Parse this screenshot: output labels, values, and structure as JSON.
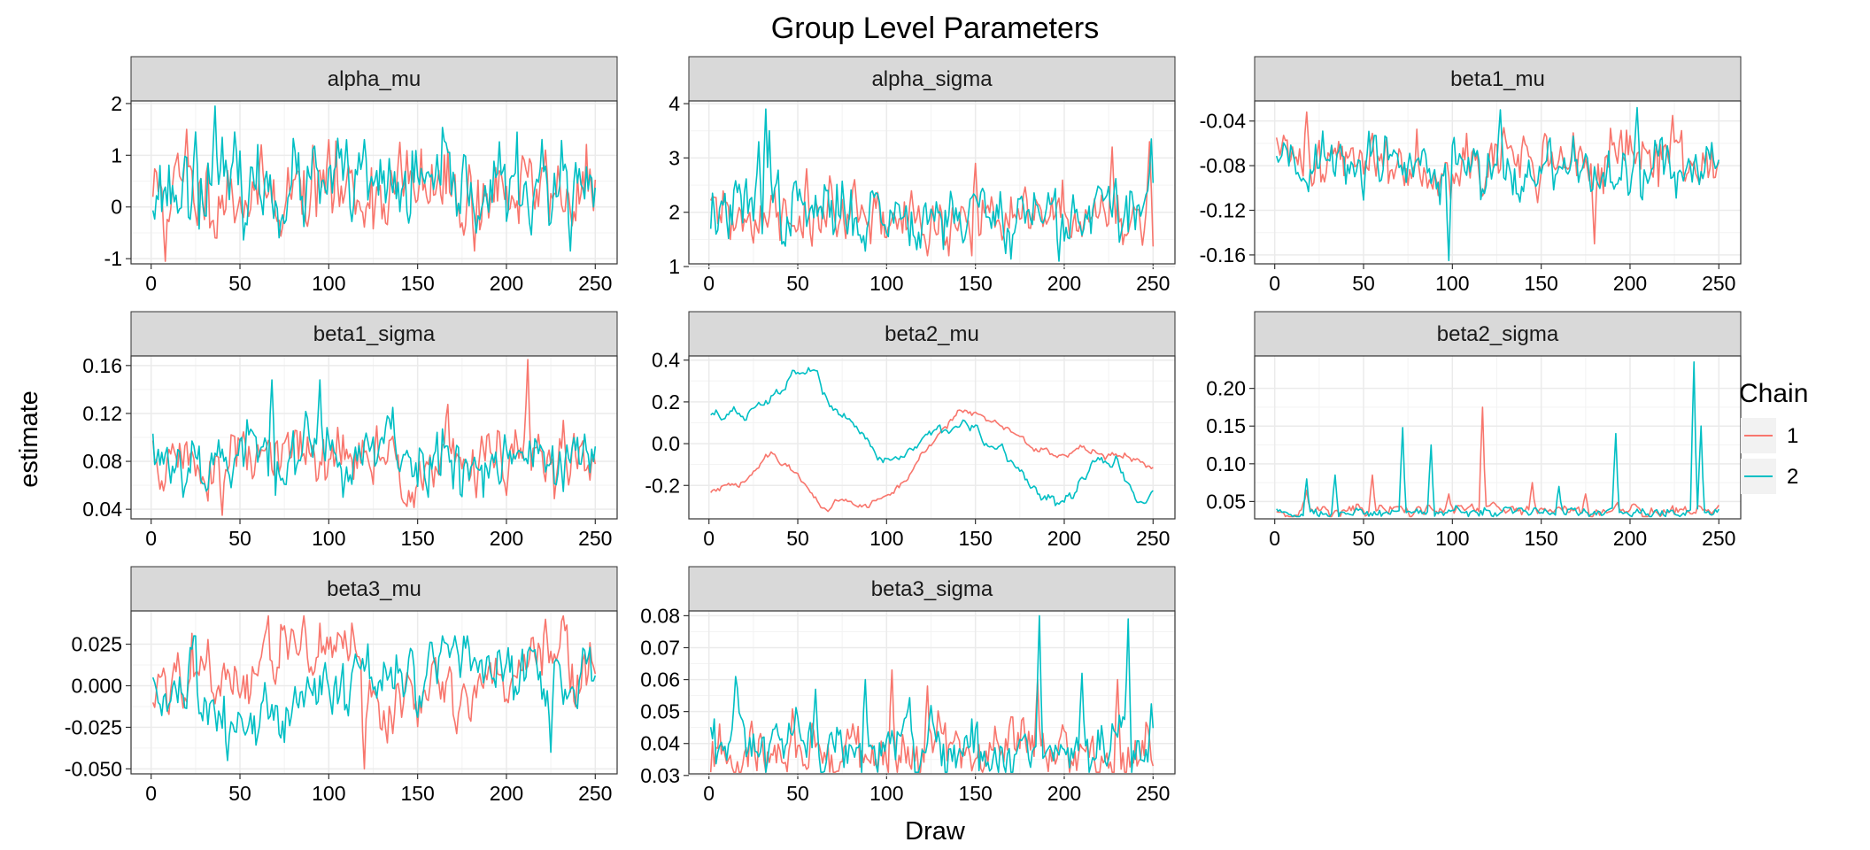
{
  "title": "Group Level Parameters",
  "xlabel": "Draw",
  "ylabel": "estimate",
  "legend": {
    "title": "Chain",
    "items": [
      {
        "label": "1",
        "color": "#F8766D"
      },
      {
        "label": "2",
        "color": "#00BFC4"
      }
    ]
  },
  "colors": {
    "chain1": "#F8766D",
    "chain2": "#00BFC4",
    "strip": "#D9D9D9",
    "grid": "#EBEBEB"
  },
  "chart_data": [
    {
      "type": "line",
      "title": "alpha_mu",
      "xlim": [
        1,
        250
      ],
      "ylim": [
        -1.1,
        2.05
      ],
      "x_ticks": [
        0,
        50,
        100,
        150,
        200,
        250
      ],
      "x_tick_labels": [
        "0",
        "50",
        "100",
        "150",
        "200",
        "250"
      ],
      "y_ticks": [
        -1,
        0,
        1,
        2
      ],
      "y_tick_labels": [
        "-1",
        "0",
        "1",
        "2"
      ],
      "series": [
        {
          "name": "1",
          "mean": 0.3,
          "sd": 0.42,
          "ar": 0.45,
          "min": -1.05,
          "max": 1.5,
          "seed": 11,
          "peaks": [
            [
              8,
              -1.05
            ],
            [
              20,
              1.5
            ],
            [
              62,
              1.2
            ],
            [
              100,
              1.3
            ],
            [
              140,
              1.25
            ],
            [
              182,
              -0.85
            ],
            [
              222,
              1.1
            ]
          ]
        },
        {
          "name": "2",
          "mean": 0.35,
          "sd": 0.42,
          "ar": 0.45,
          "min": -0.85,
          "max": 1.95,
          "seed": 23,
          "peaks": [
            [
              36,
              1.95
            ],
            [
              25,
              1.45
            ],
            [
              110,
              1.3
            ],
            [
              236,
              -0.85
            ]
          ]
        }
      ]
    },
    {
      "type": "line",
      "title": "alpha_sigma",
      "xlim": [
        1,
        250
      ],
      "ylim": [
        1.05,
        4.05
      ],
      "x_ticks": [
        0,
        50,
        100,
        150,
        200,
        250
      ],
      "x_tick_labels": [
        "0",
        "50",
        "100",
        "150",
        "200",
        "250"
      ],
      "y_ticks": [
        1,
        2,
        3,
        4
      ],
      "y_tick_labels": [
        "1",
        "2",
        "3",
        "4"
      ],
      "series": [
        {
          "name": "1",
          "mean": 1.85,
          "sd": 0.3,
          "ar": 0.5,
          "min": 1.2,
          "max": 3.3,
          "seed": 31,
          "peaks": [
            [
              55,
              2.8
            ],
            [
              150,
              2.9
            ],
            [
              227,
              3.2
            ],
            [
              248,
              3.3
            ]
          ]
        },
        {
          "name": "2",
          "mean": 2.0,
          "sd": 0.33,
          "ar": 0.55,
          "min": 1.1,
          "max": 3.9,
          "seed": 37,
          "peaks": [
            [
              32,
              3.9
            ],
            [
              28,
              3.3
            ],
            [
              34,
              3.5
            ],
            [
              197,
              1.1
            ],
            [
              249,
              3.35
            ]
          ]
        }
      ]
    },
    {
      "type": "line",
      "title": "beta1_mu",
      "xlim": [
        1,
        250
      ],
      "ylim": [
        -0.168,
        -0.022
      ],
      "x_ticks": [
        0,
        50,
        100,
        150,
        200,
        250
      ],
      "x_tick_labels": [
        "0",
        "50",
        "100",
        "150",
        "200",
        "250"
      ],
      "y_ticks": [
        -0.16,
        -0.12,
        -0.08,
        -0.04
      ],
      "y_tick_labels": [
        "-0.16",
        "-0.12",
        "-0.08",
        "-0.04"
      ],
      "series": [
        {
          "name": "1",
          "mean": -0.075,
          "sd": 0.014,
          "ar": 0.5,
          "min": -0.15,
          "max": -0.032,
          "seed": 41,
          "peaks": [
            [
              18,
              -0.032
            ],
            [
              180,
              -0.15
            ],
            [
              224,
              -0.035
            ]
          ]
        },
        {
          "name": "2",
          "mean": -0.08,
          "sd": 0.014,
          "ar": 0.5,
          "min": -0.165,
          "max": -0.028,
          "seed": 43,
          "peaks": [
            [
              98,
              -0.165
            ],
            [
              127,
              -0.03
            ],
            [
              204,
              -0.028
            ]
          ]
        }
      ]
    },
    {
      "type": "line",
      "title": "beta1_sigma",
      "xlim": [
        1,
        250
      ],
      "ylim": [
        0.032,
        0.168
      ],
      "x_ticks": [
        0,
        50,
        100,
        150,
        200,
        250
      ],
      "x_tick_labels": [
        "0",
        "50",
        "100",
        "150",
        "200",
        "250"
      ],
      "y_ticks": [
        0.04,
        0.08,
        0.12,
        0.16
      ],
      "y_tick_labels": [
        "0.04",
        "0.08",
        "0.12",
        "0.16"
      ],
      "series": [
        {
          "name": "1",
          "mean": 0.08,
          "sd": 0.016,
          "ar": 0.6,
          "min": 0.035,
          "max": 0.165,
          "seed": 51,
          "peaks": [
            [
              40,
              0.035
            ],
            [
              212,
              0.165
            ]
          ]
        },
        {
          "name": "2",
          "mean": 0.085,
          "sd": 0.016,
          "ar": 0.6,
          "min": 0.05,
          "max": 0.15,
          "seed": 53,
          "peaks": [
            [
              68,
              0.148
            ],
            [
              95,
              0.148
            ],
            [
              136,
              0.125
            ]
          ]
        }
      ]
    },
    {
      "type": "line",
      "title": "beta2_mu",
      "xlim": [
        1,
        250
      ],
      "ylim": [
        -0.36,
        0.42
      ],
      "x_ticks": [
        0,
        50,
        100,
        150,
        200,
        250
      ],
      "x_tick_labels": [
        "0",
        "50",
        "100",
        "150",
        "200",
        "250"
      ],
      "y_ticks": [
        -0.2,
        0.0,
        0.2,
        0.4
      ],
      "y_tick_labels": [
        "-0.2",
        "0.0",
        "0.2",
        "0.4"
      ],
      "series": [
        {
          "name": "1",
          "walk": true,
          "seed": 61,
          "min": -0.33,
          "max": 0.18,
          "anchors": [
            [
              1,
              -0.24
            ],
            [
              20,
              -0.17
            ],
            [
              35,
              -0.06
            ],
            [
              45,
              -0.1
            ],
            [
              55,
              -0.22
            ],
            [
              65,
              -0.3
            ],
            [
              75,
              -0.28
            ],
            [
              90,
              -0.3
            ],
            [
              100,
              -0.25
            ],
            [
              110,
              -0.18
            ],
            [
              125,
              0.0
            ],
            [
              140,
              0.17
            ],
            [
              160,
              0.12
            ],
            [
              180,
              0.0
            ],
            [
              200,
              -0.07
            ],
            [
              215,
              -0.03
            ],
            [
              230,
              -0.06
            ],
            [
              250,
              -0.08
            ]
          ]
        },
        {
          "name": "2",
          "walk": true,
          "seed": 67,
          "min": -0.33,
          "max": 0.37,
          "anchors": [
            [
              1,
              0.15
            ],
            [
              20,
              0.13
            ],
            [
              35,
              0.2
            ],
            [
              50,
              0.35
            ],
            [
              60,
              0.36
            ],
            [
              70,
              0.15
            ],
            [
              85,
              0.0
            ],
            [
              100,
              -0.07
            ],
            [
              115,
              -0.03
            ],
            [
              130,
              0.08
            ],
            [
              140,
              0.1
            ],
            [
              155,
              0.0
            ],
            [
              170,
              -0.1
            ],
            [
              185,
              -0.22
            ],
            [
              195,
              -0.3
            ],
            [
              205,
              -0.25
            ],
            [
              215,
              -0.1
            ],
            [
              230,
              -0.08
            ],
            [
              240,
              -0.3
            ],
            [
              250,
              -0.22
            ]
          ]
        }
      ]
    },
    {
      "type": "line",
      "title": "beta2_sigma",
      "xlim": [
        1,
        250
      ],
      "ylim": [
        0.027,
        0.243
      ],
      "x_ticks": [
        0,
        50,
        100,
        150,
        200,
        250
      ],
      "x_tick_labels": [
        "0",
        "50",
        "100",
        "150",
        "200",
        "250"
      ],
      "y_ticks": [
        0.05,
        0.1,
        0.15,
        0.2
      ],
      "y_tick_labels": [
        "0.05",
        "0.10",
        "0.15",
        "0.20"
      ],
      "series": [
        {
          "name": "1",
          "mean": 0.038,
          "sd": 0.005,
          "ar": 0.6,
          "min": 0.03,
          "max": 0.175,
          "seed": 71,
          "peaks": [
            [
              18,
              0.065
            ],
            [
              55,
              0.085
            ],
            [
              98,
              0.06
            ],
            [
              117,
              0.175
            ],
            [
              145,
              0.075
            ],
            [
              175,
              0.06
            ]
          ]
        },
        {
          "name": "2",
          "mean": 0.036,
          "sd": 0.004,
          "ar": 0.6,
          "min": 0.03,
          "max": 0.235,
          "seed": 73,
          "peaks": [
            [
              18,
              0.08
            ],
            [
              34,
              0.085
            ],
            [
              72,
              0.148
            ],
            [
              88,
              0.125
            ],
            [
              160,
              0.07
            ],
            [
              192,
              0.14
            ],
            [
              236,
              0.235
            ],
            [
              240,
              0.15
            ]
          ]
        }
      ]
    },
    {
      "type": "line",
      "title": "beta3_mu",
      "xlim": [
        1,
        250
      ],
      "ylim": [
        -0.053,
        0.045
      ],
      "x_ticks": [
        0,
        50,
        100,
        150,
        200,
        250
      ],
      "x_tick_labels": [
        "0",
        "50",
        "100",
        "150",
        "200",
        "250"
      ],
      "y_ticks": [
        -0.05,
        -0.025,
        0.0,
        0.025
      ],
      "y_tick_labels": [
        "-0.050",
        "-0.025",
        "0.000",
        "0.025"
      ],
      "series": [
        {
          "name": "1",
          "mean": 0.005,
          "sd": 0.011,
          "ar": 0.6,
          "min": -0.05,
          "max": 0.042,
          "seed": 81,
          "anchors_mean": [
            [
              1,
              0.0
            ],
            [
              50,
              0.005
            ],
            [
              85,
              0.025
            ],
            [
              110,
              0.015
            ],
            [
              130,
              -0.015
            ],
            [
              180,
              0.005
            ],
            [
              220,
              0.02
            ],
            [
              250,
              0.005
            ]
          ],
          "peaks": [
            [
              86,
              0.042
            ],
            [
              120,
              -0.05
            ],
            [
              222,
              0.04
            ]
          ]
        },
        {
          "name": "2",
          "mean": 0.0,
          "sd": 0.011,
          "ar": 0.6,
          "min": -0.045,
          "max": 0.03,
          "seed": 83,
          "anchors_mean": [
            [
              1,
              0.0
            ],
            [
              40,
              -0.02
            ],
            [
              70,
              -0.015
            ],
            [
              100,
              0.005
            ],
            [
              150,
              0.005
            ],
            [
              200,
              0.012
            ],
            [
              250,
              0.005
            ]
          ],
          "peaks": [
            [
              43,
              -0.045
            ],
            [
              225,
              -0.04
            ]
          ]
        }
      ]
    },
    {
      "type": "line",
      "title": "beta3_sigma",
      "xlim": [
        1,
        250
      ],
      "ylim": [
        0.0305,
        0.0815
      ],
      "x_ticks": [
        0,
        50,
        100,
        150,
        200,
        250
      ],
      "x_tick_labels": [
        "0",
        "50",
        "100",
        "150",
        "200",
        "250"
      ],
      "y_ticks": [
        0.03,
        0.04,
        0.05,
        0.06,
        0.07,
        0.08
      ],
      "y_tick_labels": [
        "0.03",
        "0.04",
        "0.05",
        "0.06",
        "0.07",
        "0.08"
      ],
      "series": [
        {
          "name": "1",
          "mean": 0.036,
          "sd": 0.005,
          "ar": 0.55,
          "min": 0.031,
          "max": 0.063,
          "seed": 91,
          "peaks": [
            [
              103,
              0.063
            ],
            [
              123,
              0.058
            ],
            [
              185,
              0.06
            ],
            [
              230,
              0.06
            ]
          ]
        },
        {
          "name": "2",
          "mean": 0.038,
          "sd": 0.006,
          "ar": 0.55,
          "min": 0.031,
          "max": 0.08,
          "seed": 97,
          "peaks": [
            [
              186,
              0.08
            ],
            [
              236,
              0.079
            ],
            [
              60,
              0.057
            ],
            [
              88,
              0.06
            ],
            [
              210,
              0.062
            ]
          ]
        }
      ]
    }
  ]
}
